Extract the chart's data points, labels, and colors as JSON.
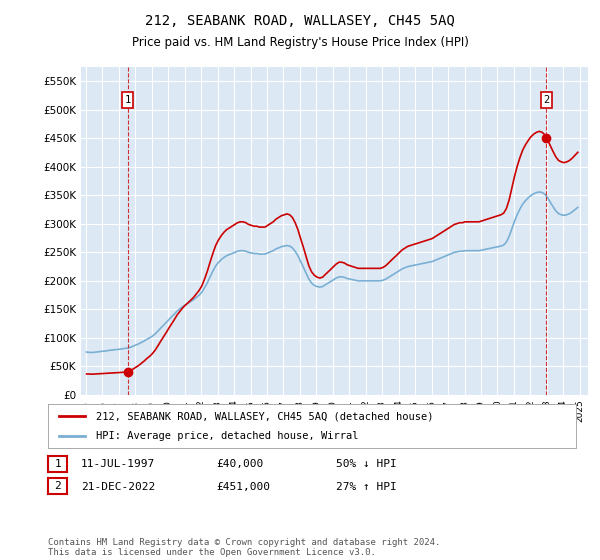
{
  "title": "212, SEABANK ROAD, WALLASEY, CH45 5AQ",
  "subtitle": "Price paid vs. HM Land Registry's House Price Index (HPI)",
  "ylim": [
    0,
    575000
  ],
  "yticks": [
    0,
    50000,
    100000,
    150000,
    200000,
    250000,
    300000,
    350000,
    400000,
    450000,
    500000,
    550000
  ],
  "ytick_labels": [
    "£0",
    "£50K",
    "£100K",
    "£150K",
    "£200K",
    "£250K",
    "£300K",
    "£350K",
    "£400K",
    "£450K",
    "£500K",
    "£550K"
  ],
  "xlim_start": 1994.7,
  "xlim_end": 2025.5,
  "plot_bg_color": "#dce9f5",
  "grid_color": "#ffffff",
  "red_color": "#cc0000",
  "blue_color": "#7aafd4",
  "point1_x": 1997.53,
  "point1_y": 40000,
  "point2_x": 2022.97,
  "point2_y": 451000,
  "legend1": "212, SEABANK ROAD, WALLASEY, CH45 5AQ (detached house)",
  "legend2": "HPI: Average price, detached house, Wirral",
  "annotation1_date": "11-JUL-1997",
  "annotation1_price": "£40,000",
  "annotation1_hpi": "50% ↓ HPI",
  "annotation2_date": "21-DEC-2022",
  "annotation2_price": "£451,000",
  "annotation2_hpi": "27% ↑ HPI",
  "footer": "Contains HM Land Registry data © Crown copyright and database right 2024.\nThis data is licensed under the Open Government Licence v3.0.",
  "hpi_years": [
    1995.04,
    1995.21,
    1995.38,
    1995.54,
    1995.71,
    1995.88,
    1996.04,
    1996.21,
    1996.38,
    1996.54,
    1996.71,
    1996.88,
    1997.04,
    1997.21,
    1997.38,
    1997.54,
    1997.71,
    1997.88,
    1998.04,
    1998.21,
    1998.38,
    1998.54,
    1998.71,
    1998.88,
    1999.04,
    1999.21,
    1999.38,
    1999.54,
    1999.71,
    1999.88,
    2000.04,
    2000.21,
    2000.38,
    2000.54,
    2000.71,
    2000.88,
    2001.04,
    2001.21,
    2001.38,
    2001.54,
    2001.71,
    2001.88,
    2002.04,
    2002.21,
    2002.38,
    2002.54,
    2002.71,
    2002.88,
    2003.04,
    2003.21,
    2003.38,
    2003.54,
    2003.71,
    2003.88,
    2004.04,
    2004.21,
    2004.38,
    2004.54,
    2004.71,
    2004.88,
    2005.04,
    2005.21,
    2005.38,
    2005.54,
    2005.71,
    2005.88,
    2006.04,
    2006.21,
    2006.38,
    2006.54,
    2006.71,
    2006.88,
    2007.04,
    2007.21,
    2007.38,
    2007.54,
    2007.71,
    2007.88,
    2008.04,
    2008.21,
    2008.38,
    2008.54,
    2008.71,
    2008.88,
    2009.04,
    2009.21,
    2009.38,
    2009.54,
    2009.71,
    2009.88,
    2010.04,
    2010.21,
    2010.38,
    2010.54,
    2010.71,
    2010.88,
    2011.04,
    2011.21,
    2011.38,
    2011.54,
    2011.71,
    2011.88,
    2012.04,
    2012.21,
    2012.38,
    2012.54,
    2012.71,
    2012.88,
    2013.04,
    2013.21,
    2013.38,
    2013.54,
    2013.71,
    2013.88,
    2014.04,
    2014.21,
    2014.38,
    2014.54,
    2014.71,
    2014.88,
    2015.04,
    2015.21,
    2015.38,
    2015.54,
    2015.71,
    2015.88,
    2016.04,
    2016.21,
    2016.38,
    2016.54,
    2016.71,
    2016.88,
    2017.04,
    2017.21,
    2017.38,
    2017.54,
    2017.71,
    2017.88,
    2018.04,
    2018.21,
    2018.38,
    2018.54,
    2018.71,
    2018.88,
    2019.04,
    2019.21,
    2019.38,
    2019.54,
    2019.71,
    2019.88,
    2020.04,
    2020.21,
    2020.38,
    2020.54,
    2020.71,
    2020.88,
    2021.04,
    2021.21,
    2021.38,
    2021.54,
    2021.71,
    2021.88,
    2022.04,
    2022.21,
    2022.38,
    2022.54,
    2022.71,
    2022.88,
    2023.04,
    2023.21,
    2023.38,
    2023.54,
    2023.71,
    2023.88,
    2024.04,
    2024.21,
    2024.38,
    2024.54,
    2024.71,
    2024.88
  ],
  "hpi_values": [
    75000,
    74500,
    74200,
    74800,
    75500,
    76000,
    76500,
    77000,
    77800,
    78500,
    79000,
    79500,
    80000,
    80800,
    81500,
    82000,
    83500,
    85500,
    87500,
    89500,
    92000,
    94500,
    97500,
    100000,
    103000,
    107000,
    112000,
    117000,
    122000,
    127000,
    132000,
    137000,
    142000,
    147000,
    151000,
    155000,
    158000,
    161000,
    164000,
    167000,
    171000,
    175000,
    180000,
    188000,
    197000,
    207000,
    217000,
    226000,
    232000,
    237000,
    241000,
    244000,
    246000,
    248000,
    250000,
    252000,
    253000,
    253000,
    252000,
    250000,
    249000,
    248000,
    248000,
    247000,
    247000,
    247000,
    249000,
    251000,
    253000,
    256000,
    258000,
    260000,
    261000,
    262000,
    261000,
    258000,
    252000,
    244000,
    234000,
    224000,
    213000,
    203000,
    196000,
    192000,
    190000,
    189000,
    190000,
    193000,
    196000,
    199000,
    202000,
    205000,
    207000,
    207000,
    206000,
    204000,
    203000,
    202000,
    201000,
    200000,
    200000,
    200000,
    200000,
    200000,
    200000,
    200000,
    200000,
    200000,
    201000,
    203000,
    206000,
    209000,
    212000,
    215000,
    218000,
    221000,
    223000,
    225000,
    226000,
    227000,
    228000,
    229000,
    230000,
    231000,
    232000,
    233000,
    234000,
    236000,
    238000,
    240000,
    242000,
    244000,
    246000,
    248000,
    250000,
    251000,
    252000,
    252000,
    253000,
    253000,
    253000,
    253000,
    253000,
    253000,
    254000,
    255000,
    256000,
    257000,
    258000,
    259000,
    260000,
    261000,
    263000,
    268000,
    278000,
    292000,
    305000,
    317000,
    327000,
    335000,
    341000,
    346000,
    350000,
    353000,
    355000,
    356000,
    355000,
    352000,
    346000,
    338000,
    330000,
    323000,
    318000,
    316000,
    315000,
    316000,
    318000,
    321000,
    325000,
    329000
  ]
}
